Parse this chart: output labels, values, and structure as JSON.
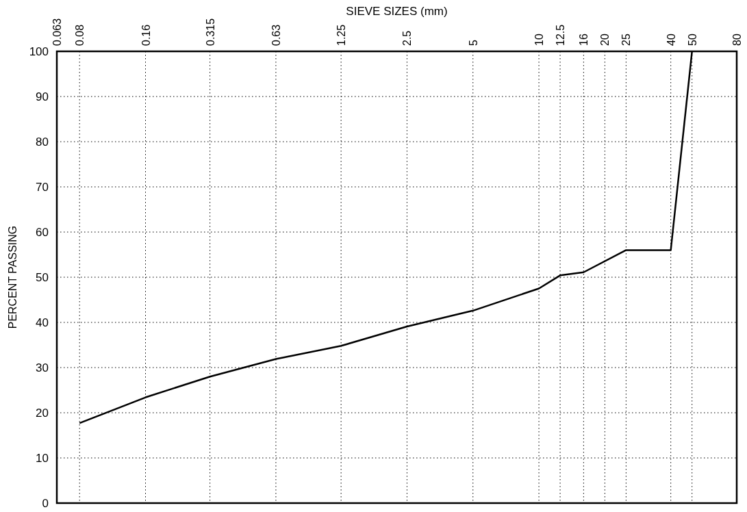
{
  "chart_data": {
    "type": "line",
    "xlabel": "SIEVE SIZES (mm)",
    "ylabel": "PERCENT PASSING",
    "x": [
      0.08,
      0.16,
      0.315,
      0.63,
      1.25,
      2.5,
      5,
      10,
      12.5,
      16,
      25,
      40,
      50
    ],
    "series": [
      {
        "color": "#000000",
        "values": [
          17.7,
          23.4,
          28.0,
          31.9,
          34.8,
          39.1,
          42.6,
          47.5,
          50.4,
          51.1,
          56.0,
          56.0,
          100
        ]
      }
    ],
    "log": "x",
    "xlim": [
      0.063,
      80
    ],
    "xticks": [
      0.063,
      0.08,
      0.16,
      0.315,
      0.63,
      1.25,
      2.5,
      5,
      10,
      12.5,
      16,
      20,
      25,
      40,
      50,
      80
    ],
    "ylim": [
      0,
      100
    ],
    "yticks": [
      0,
      10,
      20,
      30,
      40,
      50,
      60,
      70,
      80,
      90,
      100
    ],
    "grid": true,
    "marker": "none",
    "line_style": "solid"
  }
}
